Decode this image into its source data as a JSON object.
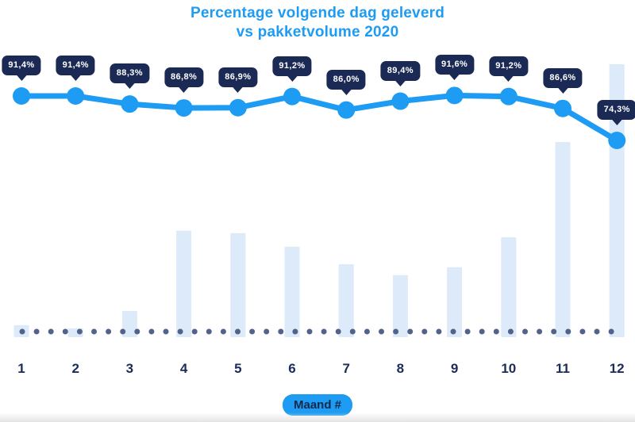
{
  "page": {
    "background": "#ffffff"
  },
  "chart": {
    "title_line1": "Percentage volgende dag geleverd",
    "title_line2": "vs pakketvolume 2020",
    "xlabel_pill": "Maand #"
  },
  "colors": {
    "accent_blue": "#1E9BF2",
    "badge_navy": "#1B2A55",
    "bar_fill": "#DCEAF9",
    "baseline_dot": "#51628B",
    "axis_label_navy": "#1A2C57",
    "pill_text_navy": "#13294B",
    "badge_text": "#FFFFFF"
  },
  "chart_data": {
    "type": "combo",
    "subtypes": [
      "line",
      "bar"
    ],
    "title": "Percentage volgende dag geleverd vs pakketvolume 2020",
    "xlabel": "Maand #",
    "ylabel": "",
    "categories": [
      "1",
      "2",
      "3",
      "4",
      "5",
      "6",
      "7",
      "8",
      "9",
      "10",
      "11",
      "12"
    ],
    "series": [
      {
        "name": "Percentage volgende dag geleverd",
        "type": "line",
        "unit": "%",
        "values": [
          91.4,
          91.4,
          88.3,
          86.8,
          86.9,
          91.2,
          86.0,
          89.4,
          91.6,
          91.2,
          86.6,
          74.3
        ],
        "point_labels": [
          "91,4%",
          "91,4%",
          "88,3%",
          "86,8%",
          "86,9%",
          "91,2%",
          "86,0%",
          "89,4%",
          "91,6%",
          "91,2%",
          "86,6%",
          "74,3%"
        ]
      },
      {
        "name": "Pakketvolume 2020",
        "type": "bar",
        "unit": "relative volume (% of max, no numeric axis shown)",
        "values_pct_of_max": [
          4.4,
          3.2,
          9.6,
          39.0,
          38.1,
          33.1,
          26.7,
          22.7,
          25.6,
          36.6,
          71.5,
          100
        ]
      }
    ],
    "legend": {
      "visible": false
    },
    "axes": {
      "y_axis_visible": false,
      "x_ticks": [
        "1",
        "2",
        "3",
        "4",
        "5",
        "6",
        "7",
        "8",
        "9",
        "10",
        "11",
        "12"
      ],
      "baseline_style": "dotted"
    }
  }
}
